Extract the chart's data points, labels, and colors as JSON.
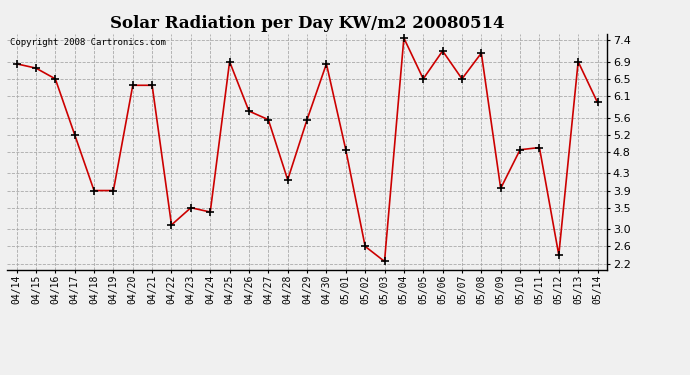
{
  "title": "Solar Radiation per Day KW/m2 20080514",
  "copyright": "Copyright 2008 Cartronics.com",
  "labels": [
    "04/14",
    "04/15",
    "04/16",
    "04/17",
    "04/18",
    "04/19",
    "04/20",
    "04/21",
    "04/22",
    "04/23",
    "04/24",
    "04/25",
    "04/26",
    "04/27",
    "04/28",
    "04/29",
    "04/30",
    "05/01",
    "05/02",
    "05/03",
    "05/04",
    "05/05",
    "05/06",
    "05/07",
    "05/08",
    "05/09",
    "05/10",
    "05/11",
    "05/12",
    "05/13",
    "05/14"
  ],
  "values": [
    6.85,
    6.75,
    6.5,
    5.2,
    3.9,
    3.9,
    6.35,
    6.35,
    3.1,
    3.5,
    3.4,
    6.9,
    5.75,
    5.55,
    4.15,
    5.55,
    6.85,
    4.85,
    2.6,
    2.25,
    7.45,
    6.5,
    7.15,
    6.5,
    7.1,
    3.95,
    4.85,
    4.9,
    2.4,
    6.9,
    5.95
  ],
  "line_color": "#cc0000",
  "marker": "+",
  "marker_color": "#000000",
  "bg_color": "#f0f0f0",
  "grid_color": "#aaaaaa",
  "ylim": [
    2.05,
    7.55
  ],
  "yticks": [
    2.2,
    2.6,
    3.0,
    3.5,
    3.9,
    4.3,
    4.8,
    5.2,
    5.6,
    6.1,
    6.5,
    6.9,
    7.4
  ],
  "title_fontsize": 12,
  "copyright_fontsize": 6.5,
  "tick_fontsize": 7,
  "ytick_fontsize": 8
}
